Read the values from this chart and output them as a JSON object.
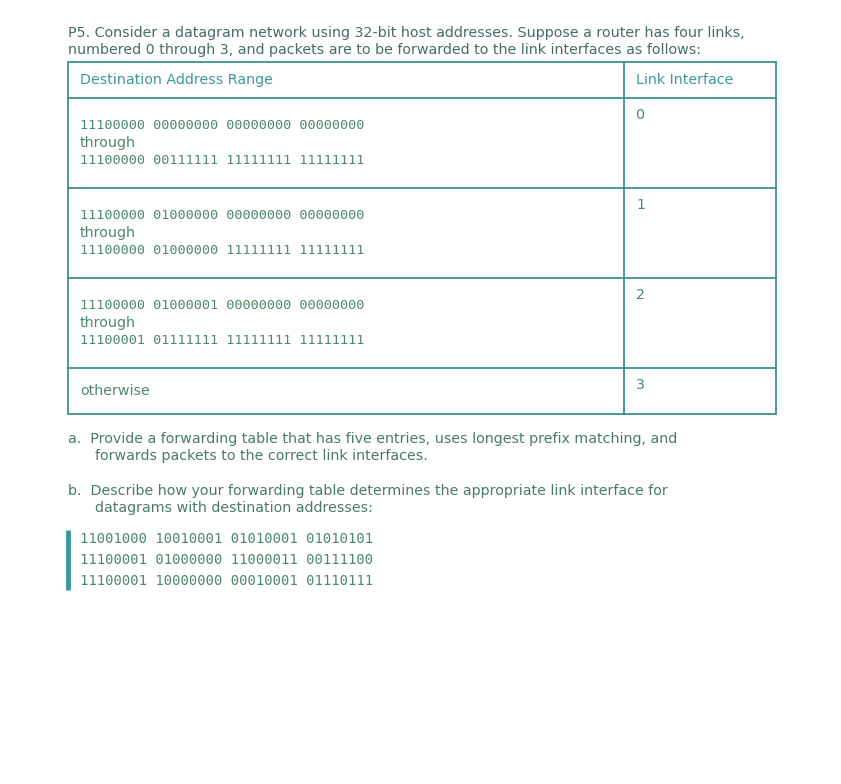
{
  "title_line1": "P5. Consider a datagram network using 32-bit host addresses. Suppose a router has four links,",
  "title_line2": "numbered 0 through 3, and packets are to be forwarded to the link interfaces as follows:",
  "table_header": [
    "Destination Address Range",
    "Link Interface"
  ],
  "table_rows": [
    {
      "dest_lines": [
        "11100000 00000000 00000000 00000000",
        "through",
        "11100000 00111111 11111111 11111111"
      ],
      "link": "0"
    },
    {
      "dest_lines": [
        "11100000 01000000 00000000 00000000",
        "through",
        "11100000 01000000 11111111 11111111"
      ],
      "link": "1"
    },
    {
      "dest_lines": [
        "11100000 01000001 00000000 00000000",
        "through",
        "11100001 01111111 11111111 11111111"
      ],
      "link": "2"
    },
    {
      "dest_lines": [
        "otherwise"
      ],
      "link": "3"
    }
  ],
  "qa_line1": "a.  Provide a forwarding table that has five entries, uses longest prefix matching, and",
  "qa_line2": "      forwards packets to the correct link interfaces.",
  "qb_line1": "b.  Describe how your forwarding table determines the appropriate link interface for",
  "qb_line2": "      datagrams with destination addresses:",
  "addresses": [
    "11001000 10010001 01010001 01010101",
    "11100001 01000000 11000011 00111100",
    "11100001 10000000 00010001 01110111"
  ],
  "header_color": "#3d9999",
  "border_color": "#3d9090",
  "mono_color": "#4d8868",
  "body_text_color": "#4a7a6e",
  "title_color": "#4a6a6a",
  "bg_color": "#ffffff",
  "bar_color": "#3d9999"
}
